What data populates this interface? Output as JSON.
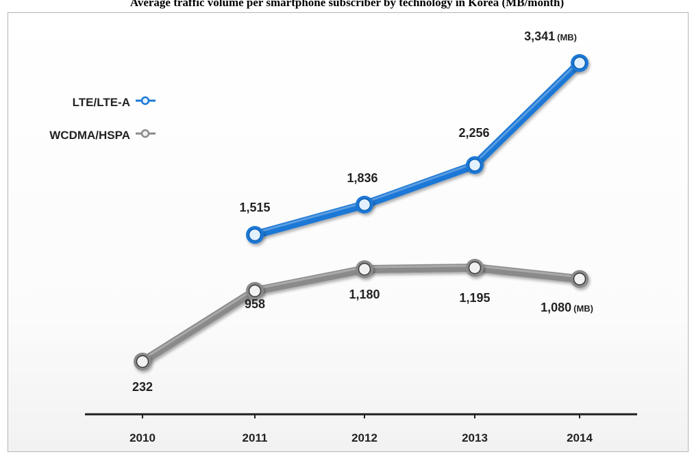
{
  "page": {
    "title": "Average traffic volume per smartphone subscriber by technology in Korea (MB/month)"
  },
  "chart_data": {
    "type": "line",
    "title": "Average traffic volume per smartphone subscriber by technology in Korea (MB/month)",
    "categories": [
      "2010",
      "2011",
      "2012",
      "2013",
      "2014"
    ],
    "series": [
      {
        "name": "LTE/LTE-A",
        "color": "#1a78d6",
        "values": [
          null,
          1515,
          1836,
          2256,
          3341
        ],
        "labels": [
          "",
          "1,515",
          "1,836",
          "2,256",
          "3,341"
        ]
      },
      {
        "name": "WCDMA/HSPA",
        "color": "#8a8a8a",
        "values": [
          232,
          958,
          1180,
          1195,
          1080
        ],
        "labels": [
          "232",
          "958",
          "1,180",
          "1,195",
          "1,080"
        ]
      }
    ],
    "unit_suffix": "(MB)",
    "legend_position": "top-left",
    "grid": false
  }
}
